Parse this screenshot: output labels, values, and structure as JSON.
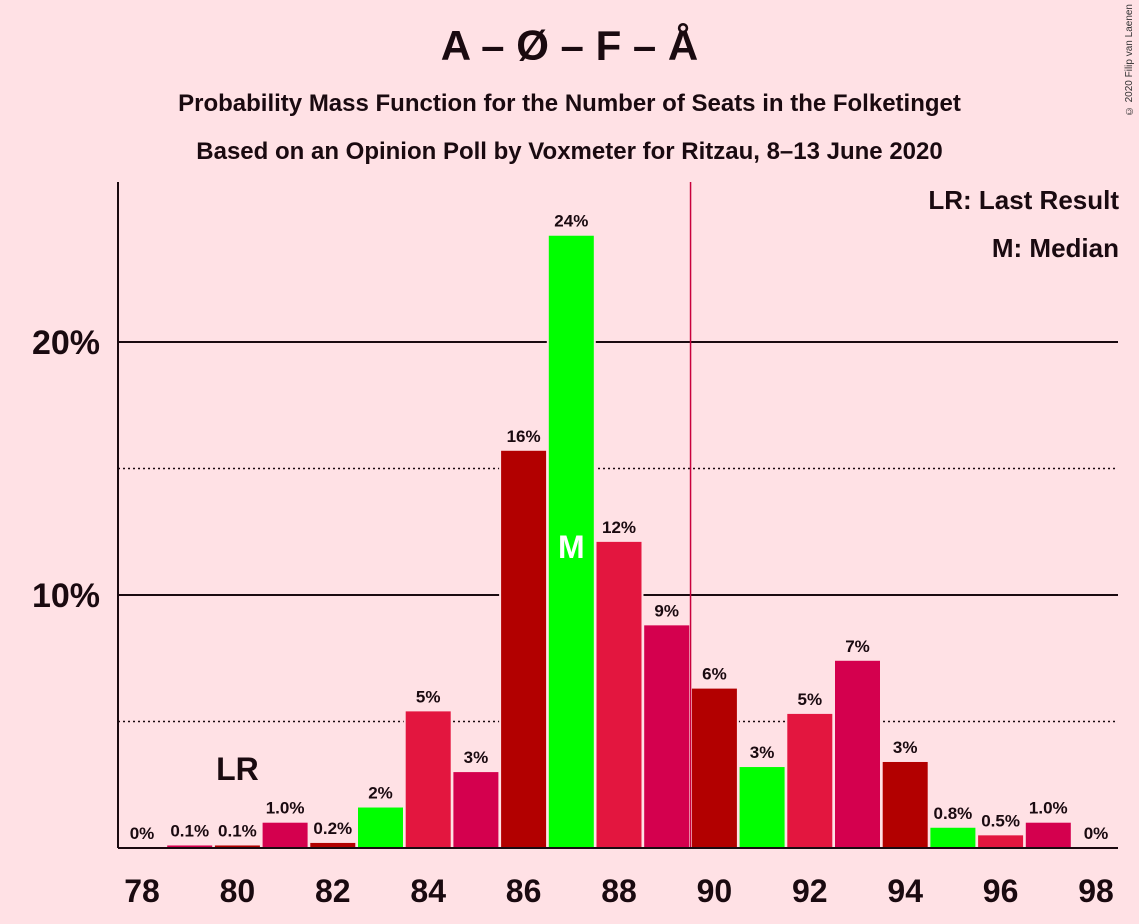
{
  "chart_data": {
    "type": "bar",
    "title": "A – Ø – F – Å",
    "subtitle": "Probability Mass Function for the Number of Seats in the Folketinget",
    "subtitle2": "Based on an Opinion Poll by Voxmeter for Ritzau, 8–13 June 2020",
    "copyright": "© 2020 Filip van Laenen",
    "legend": {
      "lr": "LR: Last Result",
      "median": "M: Median"
    },
    "x": [
      78,
      79,
      80,
      81,
      82,
      83,
      84,
      85,
      86,
      87,
      88,
      89,
      90,
      91,
      92,
      93,
      94,
      95,
      96,
      97,
      98
    ],
    "values": [
      0,
      0.1,
      0.1,
      1.0,
      0.2,
      1.6,
      5.4,
      3.0,
      15.7,
      24.2,
      12.1,
      8.8,
      6.3,
      3.2,
      5.3,
      7.4,
      3.4,
      0.8,
      0.5,
      1.0,
      0
    ],
    "labels": [
      "0%",
      "0.1%",
      "0.1%",
      "1.0%",
      "0.2%",
      "2%",
      "5%",
      "3%",
      "16%",
      "24%",
      "12%",
      "9%",
      "6%",
      "3%",
      "5%",
      "7%",
      "3%",
      "0.8%",
      "0.5%",
      "1.0%",
      "0%"
    ],
    "colors": [
      "#e3163f",
      "#d4004e",
      "#b20000",
      "#d4004e",
      "#b20000",
      "#00ff00",
      "#e3163f",
      "#d4004e",
      "#b20000",
      "#00ff00",
      "#e3163f",
      "#d4004e",
      "#b20000",
      "#00ff00",
      "#e3163f",
      "#d4004e",
      "#b20000",
      "#00ff00",
      "#e3163f",
      "#d4004e",
      "#b20000"
    ],
    "xticks": [
      "78",
      "80",
      "82",
      "84",
      "86",
      "88",
      "90",
      "92",
      "94",
      "96",
      "98"
    ],
    "yticks": [
      {
        "value": 10,
        "label": "10%"
      },
      {
        "value": 20,
        "label": "20%"
      }
    ],
    "ylim": [
      0,
      26
    ],
    "majority_line": 89.5,
    "last_result": {
      "x": 80,
      "label": "LR"
    },
    "median": {
      "x": 87,
      "label": "M"
    }
  }
}
